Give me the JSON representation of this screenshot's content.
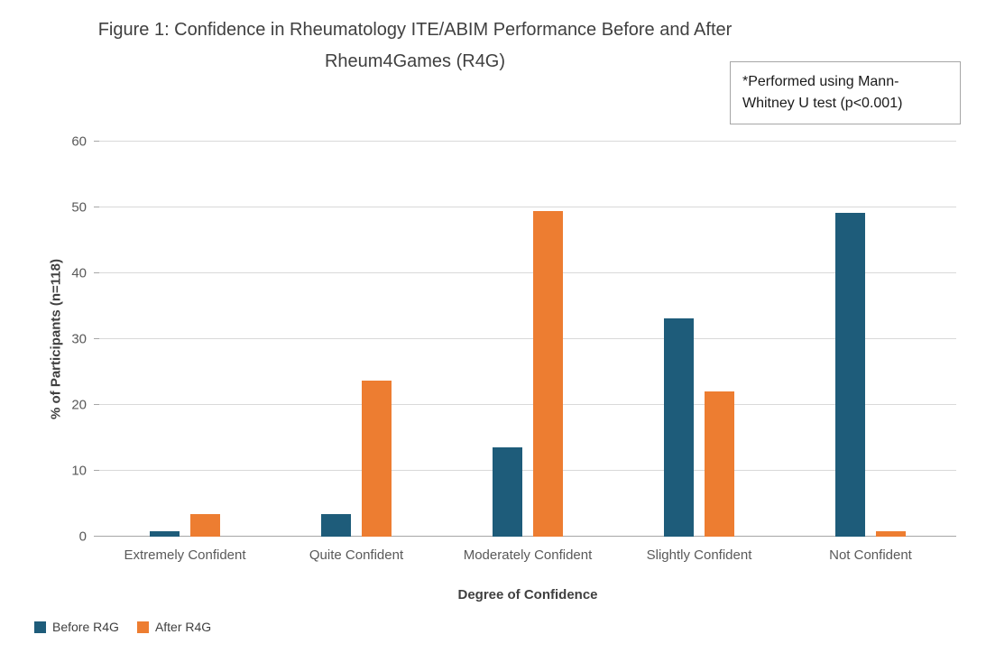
{
  "chart_data": {
    "type": "bar",
    "title": "Figure 1: Confidence in Rheumatology ITE/ABIM Performance Before and After Rheum4Games (R4G)",
    "title_lines": [
      "Figure 1: Confidence in Rheumatology ITE/ABIM Performance Before and After",
      "Rheum4Games (R4G)"
    ],
    "annotation": "*Performed using Mann-Whitney U test (p<0.001)",
    "categories": [
      "Extremely Confident",
      "Quite Confident",
      "Moderately Confident",
      "Slightly Confident",
      "Not Confident"
    ],
    "series": [
      {
        "name": "Before R4G",
        "color": "#1e5c7a",
        "values": [
          0.8,
          3.4,
          13.6,
          33.1,
          49.2
        ]
      },
      {
        "name": "After R4G",
        "color": "#ed7d31",
        "values": [
          3.4,
          23.7,
          49.5,
          22.0,
          0.8
        ]
      }
    ],
    "xlabel": "Degree of Confidence",
    "ylabel": "% of Participants (n=118)",
    "ylim": [
      0,
      60
    ],
    "ytick_interval": 10,
    "yticks": [
      "0",
      "10",
      "20",
      "30",
      "40",
      "50",
      "60"
    ],
    "grid": true,
    "legend_position": "bottom-left",
    "colors": {
      "gridline": "#d9d9d9",
      "axis_line": "#a6a6a6",
      "tick_text": "#595959",
      "title_text": "#404040"
    }
  }
}
